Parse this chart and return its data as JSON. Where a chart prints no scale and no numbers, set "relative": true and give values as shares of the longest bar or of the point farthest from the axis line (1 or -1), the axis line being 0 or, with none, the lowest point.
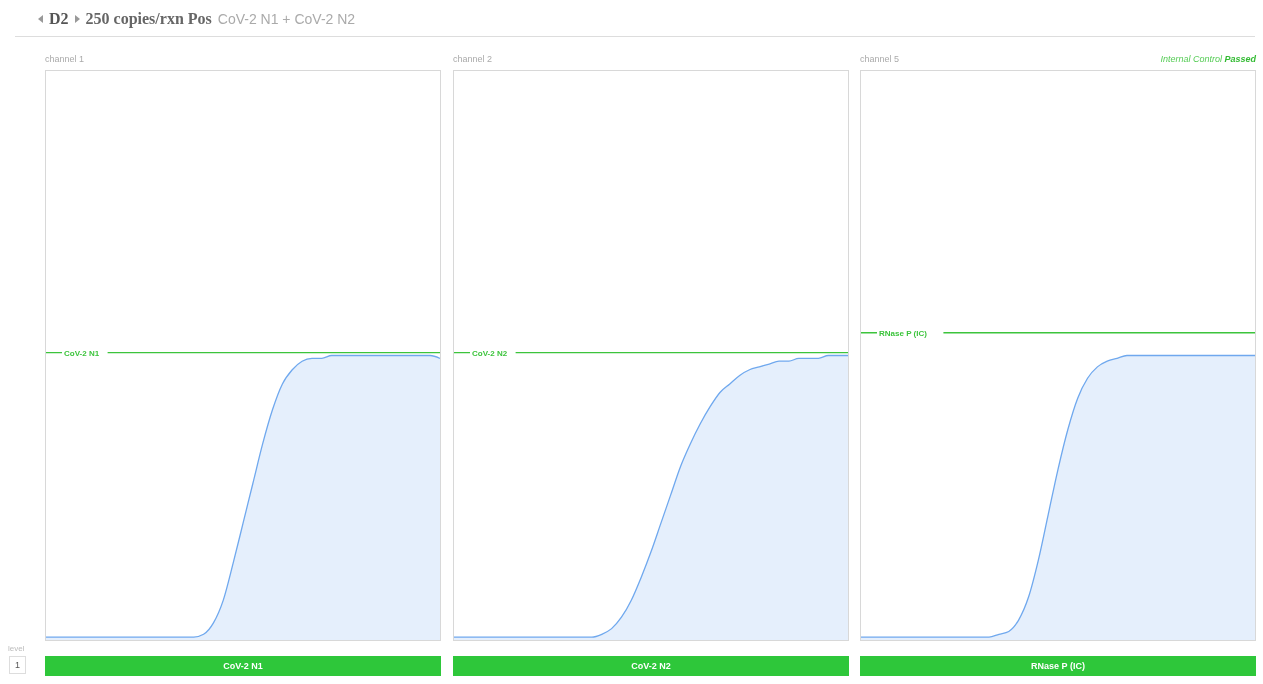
{
  "chart_data": [
    {
      "type": "area",
      "title": "channel 1",
      "xlabel": "CoV-2 N1",
      "relative": true,
      "tick_labels": false,
      "grid": false,
      "legend": false,
      "marker": "none",
      "annotations": [
        "D2",
        "250 copies/rxn Pos",
        "CoV-2 N1 + CoV-2 N2",
        "level",
        "1"
      ],
      "categories": [
        null,
        null,
        null,
        null,
        null,
        null,
        null,
        null,
        null,
        null,
        null,
        null,
        null,
        null,
        null,
        null,
        null,
        null,
        null,
        null,
        null,
        null,
        null,
        null,
        null,
        null,
        null,
        null,
        null,
        null,
        null,
        null,
        null,
        null,
        null,
        null,
        null,
        null,
        null,
        null,
        null
      ],
      "series": [
        {
          "color": "#6fa8ee",
          "values": [
            0.01,
            0.01,
            0.01,
            0.01,
            0.01,
            0.01,
            0.01,
            0.01,
            0.01,
            0.01,
            0.01,
            0.01,
            0.01,
            0.01,
            0.01,
            0.01,
            0.02,
            0.06,
            0.14,
            0.27,
            0.41,
            0.55,
            0.69,
            0.81,
            0.9,
            0.95,
            0.98,
            0.99,
            0.99,
            1,
            1,
            1,
            1,
            1,
            1,
            1,
            1,
            1,
            1,
            1,
            0.99
          ]
        }
      ],
      "ref_lines": [
        {
          "axis": "y",
          "value": 1.01,
          "label": "CoV-2 N1",
          "color": "#3cc43c"
        }
      ]
    },
    {
      "type": "area",
      "title": "channel 2",
      "xlabel": "CoV-2 N2",
      "relative": true,
      "tick_labels": false,
      "grid": false,
      "legend": false,
      "marker": "none",
      "categories": [
        null,
        null,
        null,
        null,
        null,
        null,
        null,
        null,
        null,
        null,
        null,
        null,
        null,
        null,
        null,
        null,
        null,
        null,
        null,
        null,
        null,
        null,
        null,
        null,
        null,
        null,
        null,
        null,
        null,
        null,
        null,
        null,
        null,
        null,
        null,
        null,
        null,
        null,
        null,
        null,
        null
      ],
      "series": [
        {
          "color": "#6fa8ee",
          "values": [
            0.01,
            0.01,
            0.01,
            0.01,
            0.01,
            0.01,
            0.01,
            0.01,
            0.01,
            0.01,
            0.01,
            0.01,
            0.01,
            0.01,
            0.01,
            0.02,
            0.04,
            0.08,
            0.14,
            0.22,
            0.31,
            0.41,
            0.51,
            0.61,
            0.69,
            0.76,
            0.82,
            0.87,
            0.9,
            0.93,
            0.95,
            0.96,
            0.97,
            0.98,
            0.98,
            0.99,
            0.99,
            0.99,
            1,
            1,
            1
          ]
        }
      ],
      "ref_lines": [
        {
          "axis": "y",
          "value": 1.01,
          "label": "CoV-2 N2",
          "color": "#3cc43c"
        }
      ]
    },
    {
      "type": "area",
      "title": "channel 5",
      "xlabel": "RNase P (IC)",
      "relative": true,
      "tick_labels": false,
      "grid": false,
      "legend": false,
      "marker": "none",
      "annotations": [
        "Internal Control",
        "Passed"
      ],
      "categories": [
        null,
        null,
        null,
        null,
        null,
        null,
        null,
        null,
        null,
        null,
        null,
        null,
        null,
        null,
        null,
        null,
        null,
        null,
        null,
        null,
        null,
        null,
        null,
        null,
        null,
        null,
        null,
        null,
        null,
        null,
        null,
        null,
        null,
        null,
        null,
        null,
        null,
        null,
        null,
        null,
        null
      ],
      "series": [
        {
          "color": "#6fa8ee",
          "values": [
            0.01,
            0.01,
            0.01,
            0.01,
            0.01,
            0.01,
            0.01,
            0.01,
            0.01,
            0.01,
            0.01,
            0.01,
            0.01,
            0.01,
            0.02,
            0.03,
            0.07,
            0.15,
            0.28,
            0.44,
            0.6,
            0.74,
            0.85,
            0.92,
            0.96,
            0.98,
            0.99,
            1,
            1,
            1,
            1,
            1,
            1,
            1,
            1,
            1,
            1,
            1,
            1,
            1,
            1
          ]
        }
      ],
      "ref_lines": [
        {
          "axis": "y",
          "value": 1.08,
          "label": "RNase P (IC)",
          "color": "#3cc43c"
        }
      ]
    }
  ]
}
